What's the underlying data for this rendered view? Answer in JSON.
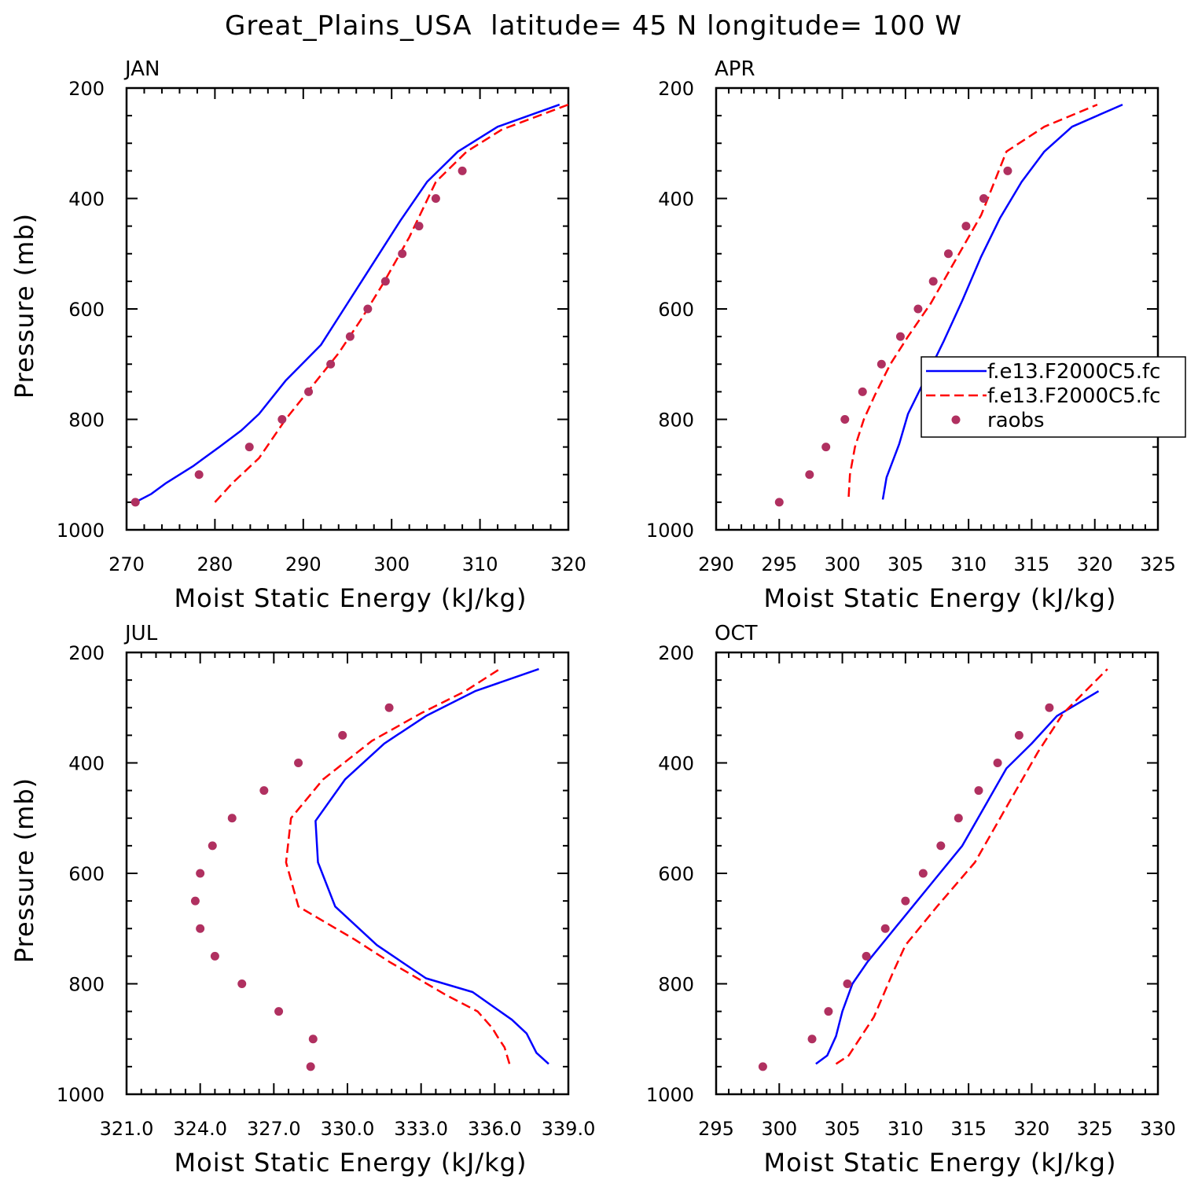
{
  "figure": {
    "title": "Great_Plains_USA  latitude= 45 N longitude= 100 W",
    "colors": {
      "model1": "#0000ff",
      "model2": "#ff0000",
      "obs": "#b03060"
    },
    "legend": {
      "placement": "in APR panel, right side",
      "entries": [
        {
          "label": "f.e13.F2000C5.fc",
          "style": "solid",
          "color": "#0000ff"
        },
        {
          "label": "f.e13.F2000C5.fc",
          "style": "dashed",
          "color": "#ff0000"
        },
        {
          "label": "raobs",
          "style": "marker",
          "color": "#b03060"
        }
      ]
    }
  },
  "chart_data": [
    {
      "type": "line",
      "title": "JAN",
      "xlabel": "Moist Static Energy (kJ/kg)",
      "ylabel": "Pressure (mb)",
      "xlim": [
        270,
        320
      ],
      "ylim": [
        1000,
        200
      ],
      "xticks": [
        "270",
        "280",
        "290",
        "300",
        "310",
        "320"
      ],
      "xtick_values": [
        270,
        280,
        290,
        300,
        310,
        320
      ],
      "yticks": [
        "200",
        "400",
        "600",
        "800",
        "1000"
      ],
      "ytick_values": [
        200,
        400,
        600,
        800,
        1000
      ],
      "series": [
        {
          "style": "solid",
          "color": "#0000ff",
          "x": [
            271.0,
            272.8,
            274.5,
            277.5,
            280.5,
            283.0,
            285.0,
            288.0,
            292.0,
            295.0,
            298.0,
            301.0,
            304.0,
            307.5,
            312.0,
            319.0
          ],
          "y": [
            950,
            935,
            915,
            885,
            850,
            820,
            790,
            730,
            665,
            590,
            515,
            440,
            370,
            315,
            270,
            230
          ]
        },
        {
          "style": "dashed",
          "color": "#ff0000",
          "x": [
            280.0,
            282.0,
            285.0,
            288.0,
            291.0,
            294.0,
            296.5,
            299.0,
            302.0,
            305.0,
            308.5,
            312.5,
            320.0
          ],
          "y": [
            950,
            915,
            870,
            800,
            740,
            680,
            620,
            555,
            470,
            370,
            315,
            275,
            230
          ]
        },
        {
          "style": "marker",
          "color": "#b03060",
          "x": [
            271.0,
            278.2,
            283.9,
            287.6,
            290.6,
            293.1,
            295.3,
            297.3,
            299.3,
            301.2,
            303.1,
            305.0,
            308.0
          ],
          "y": [
            950,
            900,
            850,
            800,
            750,
            700,
            650,
            600,
            550,
            500,
            450,
            400,
            350
          ]
        }
      ]
    },
    {
      "type": "line",
      "title": "APR",
      "xlabel": "Moist Static Energy (kJ/kg)",
      "ylabel": "",
      "xlim": [
        290,
        325
      ],
      "ylim": [
        1000,
        200
      ],
      "xticks": [
        "290",
        "295",
        "300",
        "305",
        "310",
        "315",
        "320",
        "325"
      ],
      "xtick_values": [
        290,
        295,
        300,
        305,
        310,
        315,
        320,
        325
      ],
      "yticks": [
        "200",
        "400",
        "600",
        "800",
        "1000"
      ],
      "ytick_values": [
        200,
        400,
        600,
        800,
        1000
      ],
      "series": [
        {
          "style": "solid",
          "color": "#0000ff",
          "x": [
            303.2,
            303.5,
            304.0,
            304.5,
            305.2,
            306.5,
            308.0,
            309.5,
            311.0,
            312.5,
            314.2,
            316.0,
            318.2,
            322.2
          ],
          "y": [
            945,
            905,
            875,
            845,
            790,
            730,
            660,
            585,
            505,
            435,
            370,
            315,
            270,
            230
          ]
        },
        {
          "style": "dashed",
          "color": "#ff0000",
          "x": [
            300.5,
            300.6,
            301.0,
            301.7,
            302.6,
            303.8,
            305.2,
            307.0,
            309.0,
            311.0,
            313.0,
            316.0,
            320.2
          ],
          "y": [
            940,
            900,
            850,
            800,
            755,
            700,
            650,
            590,
            510,
            430,
            315,
            270,
            230
          ]
        },
        {
          "style": "marker",
          "color": "#b03060",
          "x": [
            295.0,
            297.4,
            298.7,
            300.2,
            301.6,
            303.1,
            304.6,
            306.0,
            307.2,
            308.4,
            309.8,
            311.2,
            313.1
          ],
          "y": [
            950,
            900,
            850,
            800,
            750,
            700,
            650,
            600,
            550,
            500,
            450,
            400,
            350
          ]
        }
      ]
    },
    {
      "type": "line",
      "title": "JUL",
      "xlabel": "Moist Static Energy (kJ/kg)",
      "ylabel": "Pressure (mb)",
      "xlim": [
        321,
        339
      ],
      "ylim": [
        1000,
        200
      ],
      "xticks": [
        "321.0",
        "324.0",
        "327.0",
        "330.0",
        "333.0",
        "336.0",
        "339.0"
      ],
      "xtick_values": [
        321,
        324,
        327,
        330,
        333,
        336,
        339
      ],
      "yticks": [
        "200",
        "400",
        "600",
        "800",
        "1000"
      ],
      "ytick_values": [
        200,
        400,
        600,
        800,
        1000
      ],
      "series": [
        {
          "style": "solid",
          "color": "#0000ff",
          "x": [
            338.2,
            337.7,
            337.3,
            336.7,
            335.9,
            335.1,
            333.2,
            331.2,
            329.5,
            328.8,
            328.7,
            329.9,
            331.5,
            333.2,
            335.2,
            337.8
          ],
          "y": [
            945,
            925,
            890,
            865,
            840,
            815,
            790,
            730,
            660,
            580,
            505,
            430,
            365,
            315,
            270,
            230
          ]
        },
        {
          "style": "dashed",
          "color": "#ff0000",
          "x": [
            336.6,
            336.4,
            336.1,
            335.9,
            335.3,
            334.0,
            331.7,
            330.3,
            328.0,
            327.5,
            327.7,
            329.0,
            331.0,
            333.0,
            334.8,
            336.2
          ],
          "y": [
            945,
            915,
            895,
            880,
            850,
            820,
            760,
            720,
            660,
            580,
            500,
            430,
            360,
            310,
            270,
            230
          ]
        },
        {
          "style": "marker",
          "color": "#b03060",
          "x": [
            328.5,
            328.6,
            327.2,
            325.7,
            324.6,
            324.0,
            323.8,
            324.0,
            324.5,
            325.3,
            326.6,
            328.0,
            329.8,
            331.7
          ],
          "y": [
            950,
            900,
            850,
            800,
            750,
            700,
            650,
            600,
            550,
            500,
            450,
            400,
            350,
            300
          ]
        }
      ]
    },
    {
      "type": "line",
      "title": "OCT",
      "xlabel": "Moist Static Energy (kJ/kg)",
      "ylabel": "",
      "xlim": [
        295,
        330
      ],
      "ylim": [
        1000,
        200
      ],
      "xticks": [
        "295",
        "300",
        "305",
        "310",
        "315",
        "320",
        "325",
        "330"
      ],
      "xtick_values": [
        295,
        300,
        305,
        310,
        315,
        320,
        325,
        330
      ],
      "yticks": [
        "200",
        "400",
        "600",
        "800",
        "1000"
      ],
      "ytick_values": [
        200,
        400,
        600,
        800,
        1000
      ],
      "series": [
        {
          "style": "solid",
          "color": "#0000ff",
          "x": [
            302.9,
            303.8,
            304.5,
            305.0,
            305.8,
            307.0,
            309.5,
            312.0,
            314.5,
            316.5,
            318.0,
            320.0,
            322.0,
            325.3
          ],
          "y": [
            945,
            930,
            895,
            850,
            800,
            760,
            690,
            620,
            550,
            470,
            410,
            365,
            315,
            270
          ]
        },
        {
          "style": "dashed",
          "color": "#ff0000",
          "x": [
            304.5,
            305.5,
            307.5,
            309.0,
            310.0,
            312.5,
            315.5,
            318.0,
            320.5,
            322.5,
            326.0
          ],
          "y": [
            945,
            930,
            860,
            780,
            730,
            660,
            580,
            480,
            380,
            310,
            230
          ]
        },
        {
          "style": "marker",
          "color": "#b03060",
          "x": [
            298.7,
            302.6,
            303.9,
            305.4,
            306.9,
            308.4,
            310.0,
            311.4,
            312.8,
            314.2,
            315.8,
            317.3,
            319.0,
            321.4
          ],
          "y": [
            950,
            900,
            850,
            800,
            750,
            700,
            650,
            600,
            550,
            500,
            450,
            400,
            350,
            300
          ]
        }
      ]
    }
  ]
}
